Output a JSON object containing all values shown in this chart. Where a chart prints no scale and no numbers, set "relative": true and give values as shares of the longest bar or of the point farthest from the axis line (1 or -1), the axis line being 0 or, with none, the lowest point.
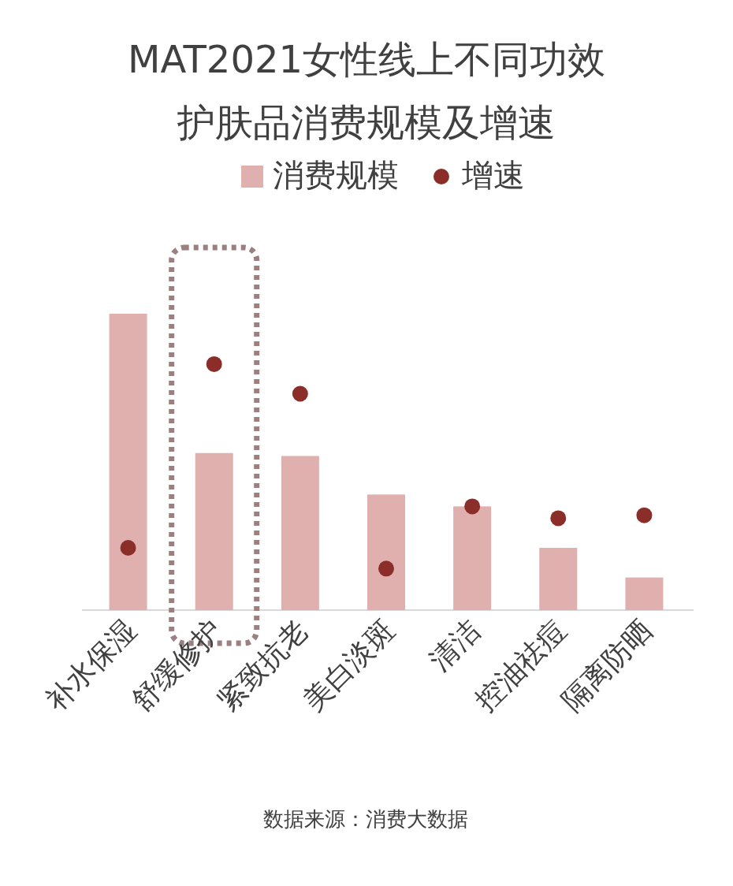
{
  "chart_data": {
    "type": "bar",
    "title": "MAT2021女性线上不同功效护肤品消费规模及增速",
    "relative": true,
    "legend": "top",
    "categories": [
      "补水保湿",
      "舒缓修护",
      "紧致抗老",
      "美白淡斑",
      "清洁",
      "控油祛痘",
      "隔离防晒"
    ],
    "series": [
      {
        "name": "消费规模",
        "color": "#e0b0ae",
        "values": [
          1,
          0.53,
          0.52,
          0.39,
          0.35,
          0.21,
          0.11
        ]
      },
      {
        "name": "增速",
        "type": "scatter",
        "color": "#8b2e2a",
        "values": [
          0.21,
          0.83,
          0.73,
          0.14,
          0.35,
          0.31,
          0.32
        ]
      }
    ],
    "annotations": [
      "数据来源：消费大数据"
    ]
  }
}
